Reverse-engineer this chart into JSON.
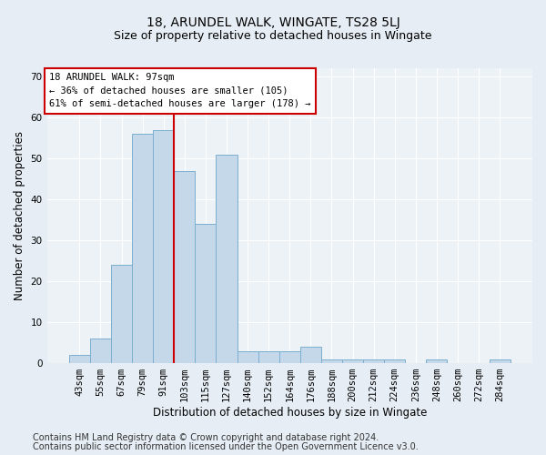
{
  "title": "18, ARUNDEL WALK, WINGATE, TS28 5LJ",
  "subtitle": "Size of property relative to detached houses in Wingate",
  "xlabel": "Distribution of detached houses by size in Wingate",
  "ylabel": "Number of detached properties",
  "bar_labels": [
    "43sqm",
    "55sqm",
    "67sqm",
    "79sqm",
    "91sqm",
    "103sqm",
    "115sqm",
    "127sqm",
    "140sqm",
    "152sqm",
    "164sqm",
    "176sqm",
    "188sqm",
    "200sqm",
    "212sqm",
    "224sqm",
    "236sqm",
    "248sqm",
    "260sqm",
    "272sqm",
    "284sqm"
  ],
  "bar_values": [
    2,
    6,
    24,
    56,
    57,
    47,
    34,
    51,
    3,
    3,
    3,
    4,
    1,
    1,
    1,
    1,
    0,
    1,
    0,
    0,
    1
  ],
  "bar_color": "#c5d8ea",
  "bar_edge_color": "#7aaecf",
  "vline_color": "#cc0000",
  "annotation_text": "18 ARUNDEL WALK: 97sqm\n← 36% of detached houses are smaller (105)\n61% of semi-detached houses are larger (178) →",
  "annotation_box_color": "#ffffff",
  "annotation_box_edge_color": "#cc0000",
  "ylim": [
    0,
    72
  ],
  "yticks": [
    0,
    10,
    20,
    30,
    40,
    50,
    60,
    70
  ],
  "footer_line1": "Contains HM Land Registry data © Crown copyright and database right 2024.",
  "footer_line2": "Contains public sector information licensed under the Open Government Licence v3.0.",
  "background_color": "#e6edf4",
  "plot_background_color": "#edf2f7",
  "grid_color": "#ffffff",
  "title_fontsize": 10,
  "subtitle_fontsize": 9,
  "axis_label_fontsize": 8.5,
  "tick_fontsize": 7.5,
  "annotation_fontsize": 7.5,
  "footer_fontsize": 7
}
